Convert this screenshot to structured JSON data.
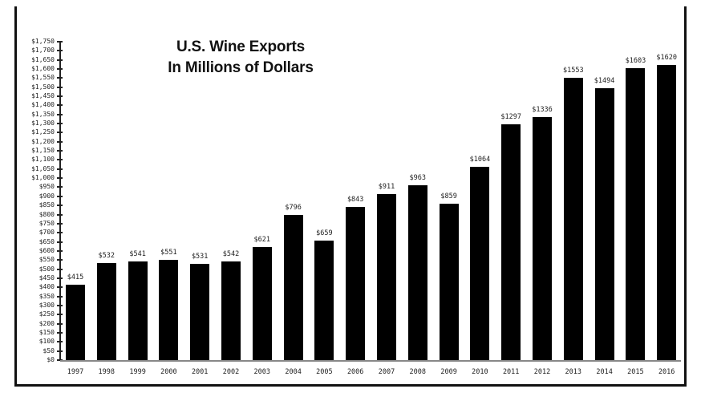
{
  "chart_data": {
    "type": "bar",
    "title": "U.S. Wine Exports In Millions of Dollars",
    "title_lines": [
      "U.S. Wine Exports",
      "In Millions of Dollars"
    ],
    "xlabel": "",
    "ylabel": "",
    "categories": [
      "1997",
      "1998",
      "1999",
      "2000",
      "2001",
      "2002",
      "2003",
      "2004",
      "2005",
      "2006",
      "2007",
      "2008",
      "2009",
      "2010",
      "2011",
      "2012",
      "2013",
      "2014",
      "2015",
      "2016"
    ],
    "values": [
      415,
      532,
      541,
      551,
      531,
      542,
      621,
      796,
      659,
      843,
      911,
      963,
      859,
      1064,
      1297,
      1336,
      1553,
      1494,
      1603,
      1620
    ],
    "value_labels": [
      "$415",
      "$532",
      "$541",
      "$551",
      "$531",
      "$542",
      "$621",
      "$796",
      "$659",
      "$843",
      "$911",
      "$963",
      "$859",
      "$1064",
      "$1297",
      "$1336",
      "$1553",
      "$1494",
      "$1603",
      "$1620"
    ],
    "ylim": [
      0,
      1750
    ],
    "y_tick_step": 50,
    "y_tick_labels": [
      "$0",
      "$50",
      "$100",
      "$150",
      "$200",
      "$250",
      "$300",
      "$350",
      "$400",
      "$450",
      "$500",
      "$550",
      "$600",
      "$650",
      "$700",
      "$750",
      "$800",
      "$850",
      "$900",
      "$950",
      "$1,000",
      "$1,050",
      "$1,100",
      "$1,150",
      "$1,200",
      "$1,250",
      "$1,300",
      "$1,350",
      "$1,400",
      "$1,450",
      "$1,500",
      "$1,550",
      "$1,600",
      "$1,650",
      "$1,700",
      "$1,750"
    ],
    "grid": false,
    "legend": null,
    "bar_color": "#000000"
  }
}
